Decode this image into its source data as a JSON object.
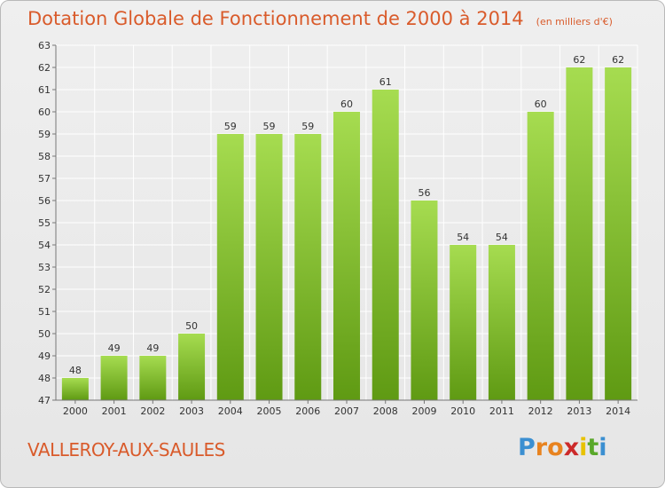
{
  "header": {
    "title": "Dotation Globale de Fonctionnement de 2000 à 2014",
    "unit": "(en milliers d'€)"
  },
  "footer": {
    "commune": "VALLEROY-AUX-SAULES",
    "logo_letters": [
      "P",
      "r",
      "o",
      "x",
      "i",
      "t",
      "i"
    ],
    "logo_colors": [
      "#3b8fd1",
      "#e8831f",
      "#e8831f",
      "#cc2a2a",
      "#e8c200",
      "#5aa82a",
      "#3b8fd1"
    ]
  },
  "colors": {
    "title": "#d95b2b",
    "bar_top": "#a6dc50",
    "bar_bottom": "#5f9a13",
    "grid": "#ffffff",
    "text": "#333333"
  },
  "chart_data": {
    "type": "bar",
    "categories": [
      "2000",
      "2001",
      "2002",
      "2003",
      "2004",
      "2005",
      "2006",
      "2007",
      "2008",
      "2009",
      "2010",
      "2011",
      "2012",
      "2013",
      "2014"
    ],
    "values": [
      48,
      49,
      49,
      50,
      59,
      59,
      59,
      60,
      61,
      56,
      54,
      54,
      60,
      62,
      62
    ],
    "ylim": [
      47,
      63
    ],
    "yticks": [
      47,
      48,
      49,
      50,
      51,
      52,
      53,
      54,
      55,
      56,
      57,
      58,
      59,
      60,
      61,
      62,
      63
    ],
    "grid": true,
    "data_labels": true
  }
}
